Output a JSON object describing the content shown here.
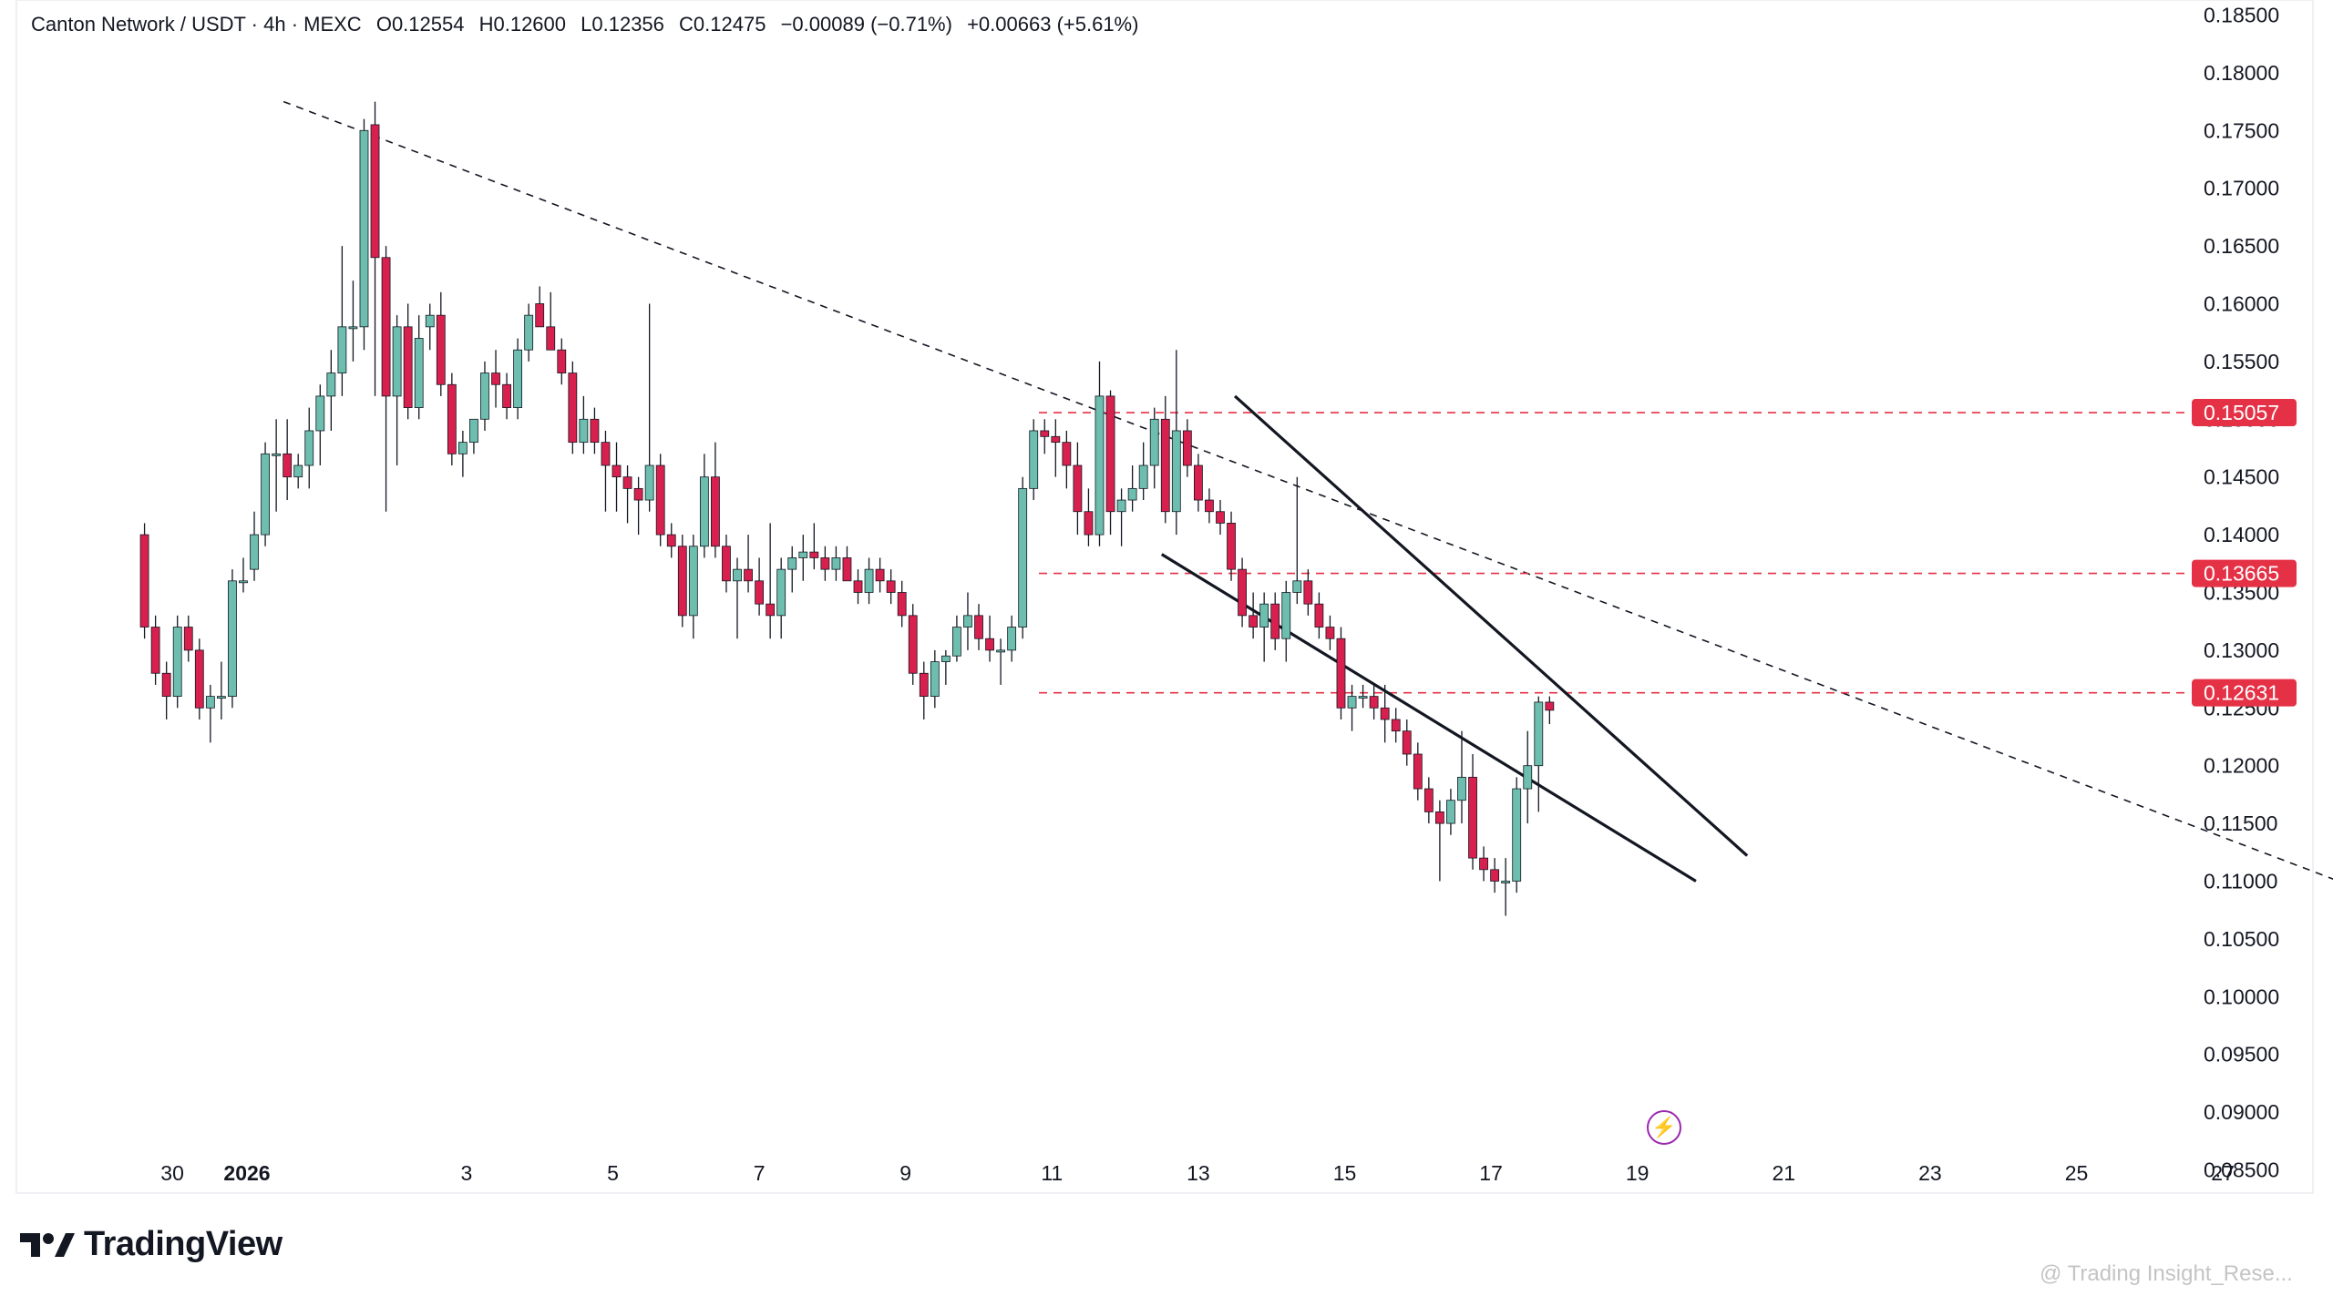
{
  "legend": {
    "symbol": "Canton Network / USDT · 4h · MEXC",
    "open": "O0.12554",
    "high": "H0.12600",
    "low": "L0.12356",
    "close": "C0.12475",
    "change": "−0.00089 (−0.71%)",
    "change2": "+0.00663 (+5.61%)"
  },
  "branding": {
    "logo_text": "TradingView",
    "watermark": "@ Trading Insight_Rese..."
  },
  "icons": {
    "logo": "tradingview-logo-icon",
    "bolt": "lightning-bolt-icon"
  },
  "colors": {
    "up": "#6dbeae",
    "down": "#d8204f",
    "level": "#e53146",
    "trend": "#131722"
  },
  "chart_data": {
    "type": "candlestick",
    "price_axis_ticks": [
      "0.18500",
      "0.18000",
      "0.17500",
      "0.17000",
      "0.16500",
      "0.16000",
      "0.15500",
      "0.15000",
      "0.14500",
      "0.14000",
      "0.13500",
      "0.13000",
      "0.12500",
      "0.12000",
      "0.11500",
      "0.11000",
      "0.10500",
      "0.10000",
      "0.09500",
      "0.09000",
      "0.08500"
    ],
    "ylim": [
      0.0822,
      0.1863
    ],
    "date_axis_ticks": [
      "30",
      "2026",
      "3",
      "5",
      "7",
      "9",
      "11",
      "13",
      "15",
      "17",
      "19",
      "21",
      "23",
      "25",
      "27"
    ],
    "level_labels": [
      "0.15057",
      "0.13665",
      "0.12631"
    ],
    "levels": [
      0.15057,
      0.13665,
      0.12631
    ],
    "trendline": {
      "from": [
        0.5,
        0.1775
      ],
      "to": [
        29.0,
        0.109
      ]
    },
    "wedge": {
      "upper": {
        "from": [
          13.5,
          0.152
        ],
        "to": [
          20.5,
          0.1122
        ]
      },
      "lower": {
        "from": [
          12.5,
          0.1383
        ],
        "to": [
          19.8,
          0.11
        ]
      }
    },
    "candles": [
      [
        -1.4,
        0.14,
        0.141,
        0.131,
        0.132
      ],
      [
        -1.25,
        0.132,
        0.133,
        0.127,
        0.128
      ],
      [
        -1.1,
        0.128,
        0.129,
        0.124,
        0.126
      ],
      [
        -0.95,
        0.126,
        0.133,
        0.125,
        0.132
      ],
      [
        -0.8,
        0.132,
        0.133,
        0.129,
        0.13
      ],
      [
        -0.65,
        0.13,
        0.131,
        0.124,
        0.125
      ],
      [
        -0.5,
        0.125,
        0.127,
        0.122,
        0.126
      ],
      [
        -0.35,
        0.126,
        0.129,
        0.124,
        0.126
      ],
      [
        -0.2,
        0.126,
        0.137,
        0.125,
        0.136
      ],
      [
        -0.05,
        0.136,
        0.138,
        0.135,
        0.136
      ],
      [
        0.1,
        0.137,
        0.142,
        0.136,
        0.14
      ],
      [
        0.25,
        0.14,
        0.148,
        0.139,
        0.147
      ],
      [
        0.4,
        0.147,
        0.15,
        0.142,
        0.147
      ],
      [
        0.55,
        0.147,
        0.15,
        0.143,
        0.145
      ],
      [
        0.7,
        0.145,
        0.147,
        0.144,
        0.146
      ],
      [
        0.85,
        0.146,
        0.151,
        0.144,
        0.149
      ],
      [
        1.0,
        0.149,
        0.153,
        0.146,
        0.152
      ],
      [
        1.15,
        0.152,
        0.156,
        0.149,
        0.154
      ],
      [
        1.3,
        0.154,
        0.165,
        0.152,
        0.158
      ],
      [
        1.45,
        0.158,
        0.162,
        0.155,
        0.158
      ],
      [
        1.6,
        0.158,
        0.176,
        0.156,
        0.175
      ],
      [
        1.75,
        0.1755,
        0.1775,
        0.152,
        0.164
      ],
      [
        1.9,
        0.164,
        0.165,
        0.142,
        0.152
      ],
      [
        2.05,
        0.152,
        0.159,
        0.146,
        0.158
      ],
      [
        2.2,
        0.158,
        0.16,
        0.15,
        0.151
      ],
      [
        2.35,
        0.151,
        0.159,
        0.15,
        0.157
      ],
      [
        2.5,
        0.158,
        0.16,
        0.156,
        0.159
      ],
      [
        2.65,
        0.159,
        0.161,
        0.152,
        0.153
      ],
      [
        2.8,
        0.153,
        0.154,
        0.146,
        0.147
      ],
      [
        2.95,
        0.147,
        0.149,
        0.145,
        0.148
      ],
      [
        3.1,
        0.148,
        0.15,
        0.147,
        0.15
      ],
      [
        3.25,
        0.15,
        0.155,
        0.149,
        0.154
      ],
      [
        3.4,
        0.154,
        0.156,
        0.151,
        0.153
      ],
      [
        3.55,
        0.153,
        0.154,
        0.15,
        0.151
      ],
      [
        3.7,
        0.151,
        0.157,
        0.15,
        0.156
      ],
      [
        3.85,
        0.156,
        0.16,
        0.155,
        0.159
      ],
      [
        4.0,
        0.16,
        0.1615,
        0.158,
        0.158
      ],
      [
        4.15,
        0.158,
        0.161,
        0.156,
        0.156
      ],
      [
        4.3,
        0.156,
        0.157,
        0.153,
        0.154
      ],
      [
        4.45,
        0.154,
        0.155,
        0.147,
        0.148
      ],
      [
        4.6,
        0.148,
        0.152,
        0.147,
        0.15
      ],
      [
        4.75,
        0.15,
        0.151,
        0.147,
        0.148
      ],
      [
        4.9,
        0.148,
        0.149,
        0.142,
        0.146
      ],
      [
        5.05,
        0.146,
        0.148,
        0.142,
        0.145
      ],
      [
        5.2,
        0.145,
        0.146,
        0.141,
        0.144
      ],
      [
        5.35,
        0.144,
        0.145,
        0.14,
        0.143
      ],
      [
        5.5,
        0.143,
        0.16,
        0.142,
        0.146
      ],
      [
        5.65,
        0.146,
        0.147,
        0.139,
        0.14
      ],
      [
        5.8,
        0.14,
        0.141,
        0.138,
        0.139
      ],
      [
        5.95,
        0.139,
        0.14,
        0.132,
        0.133
      ],
      [
        6.1,
        0.133,
        0.14,
        0.131,
        0.139
      ],
      [
        6.25,
        0.139,
        0.147,
        0.138,
        0.145
      ],
      [
        6.4,
        0.145,
        0.148,
        0.138,
        0.139
      ],
      [
        6.55,
        0.139,
        0.14,
        0.135,
        0.136
      ],
      [
        6.7,
        0.136,
        0.138,
        0.131,
        0.137
      ],
      [
        6.85,
        0.137,
        0.14,
        0.135,
        0.136
      ],
      [
        7.0,
        0.136,
        0.138,
        0.133,
        0.134
      ],
      [
        7.15,
        0.134,
        0.141,
        0.131,
        0.133
      ],
      [
        7.3,
        0.133,
        0.138,
        0.131,
        0.137
      ],
      [
        7.45,
        0.137,
        0.139,
        0.135,
        0.138
      ],
      [
        7.6,
        0.138,
        0.14,
        0.136,
        0.1385
      ],
      [
        7.75,
        0.1385,
        0.141,
        0.137,
        0.138
      ],
      [
        7.9,
        0.138,
        0.139,
        0.136,
        0.137
      ],
      [
        8.05,
        0.137,
        0.139,
        0.136,
        0.138
      ],
      [
        8.2,
        0.138,
        0.139,
        0.136,
        0.136
      ],
      [
        8.35,
        0.136,
        0.137,
        0.134,
        0.135
      ],
      [
        8.5,
        0.135,
        0.138,
        0.134,
        0.137
      ],
      [
        8.65,
        0.137,
        0.138,
        0.135,
        0.136
      ],
      [
        8.8,
        0.136,
        0.137,
        0.134,
        0.135
      ],
      [
        8.95,
        0.135,
        0.136,
        0.132,
        0.133
      ],
      [
        9.1,
        0.133,
        0.134,
        0.127,
        0.128
      ],
      [
        9.25,
        0.128,
        0.129,
        0.124,
        0.126
      ],
      [
        9.4,
        0.126,
        0.13,
        0.125,
        0.129
      ],
      [
        9.55,
        0.129,
        0.13,
        0.127,
        0.1295
      ],
      [
        9.7,
        0.1295,
        0.133,
        0.129,
        0.132
      ],
      [
        9.85,
        0.132,
        0.135,
        0.13,
        0.133
      ],
      [
        10.0,
        0.133,
        0.134,
        0.13,
        0.131
      ],
      [
        10.15,
        0.131,
        0.133,
        0.129,
        0.13
      ],
      [
        10.3,
        0.13,
        0.131,
        0.127,
        0.13
      ],
      [
        10.45,
        0.13,
        0.133,
        0.129,
        0.132
      ],
      [
        10.6,
        0.132,
        0.145,
        0.131,
        0.144
      ],
      [
        10.75,
        0.144,
        0.15,
        0.143,
        0.149
      ],
      [
        10.9,
        0.149,
        0.15,
        0.147,
        0.1485
      ],
      [
        11.05,
        0.1485,
        0.15,
        0.145,
        0.148
      ],
      [
        11.2,
        0.148,
        0.149,
        0.144,
        0.146
      ],
      [
        11.35,
        0.146,
        0.148,
        0.14,
        0.142
      ],
      [
        11.5,
        0.142,
        0.144,
        0.139,
        0.14
      ],
      [
        11.65,
        0.14,
        0.155,
        0.139,
        0.152
      ],
      [
        11.8,
        0.152,
        0.1525,
        0.14,
        0.142
      ],
      [
        11.95,
        0.142,
        0.144,
        0.139,
        0.143
      ],
      [
        12.1,
        0.143,
        0.146,
        0.142,
        0.144
      ],
      [
        12.25,
        0.144,
        0.148,
        0.143,
        0.146
      ],
      [
        12.4,
        0.146,
        0.151,
        0.144,
        0.15
      ],
      [
        12.55,
        0.15,
        0.152,
        0.141,
        0.142
      ],
      [
        12.7,
        0.142,
        0.156,
        0.14,
        0.149
      ],
      [
        12.85,
        0.149,
        0.15,
        0.145,
        0.146
      ],
      [
        13.0,
        0.146,
        0.147,
        0.142,
        0.143
      ],
      [
        13.15,
        0.143,
        0.144,
        0.141,
        0.142
      ],
      [
        13.3,
        0.142,
        0.143,
        0.14,
        0.141
      ],
      [
        13.45,
        0.141,
        0.142,
        0.136,
        0.137
      ],
      [
        13.6,
        0.137,
        0.138,
        0.132,
        0.133
      ],
      [
        13.75,
        0.133,
        0.135,
        0.131,
        0.132
      ],
      [
        13.9,
        0.132,
        0.135,
        0.129,
        0.134
      ],
      [
        14.05,
        0.134,
        0.135,
        0.13,
        0.131
      ],
      [
        14.2,
        0.131,
        0.136,
        0.129,
        0.135
      ],
      [
        14.35,
        0.135,
        0.145,
        0.134,
        0.136
      ],
      [
        14.5,
        0.136,
        0.137,
        0.133,
        0.134
      ],
      [
        14.65,
        0.134,
        0.135,
        0.131,
        0.132
      ],
      [
        14.8,
        0.132,
        0.133,
        0.13,
        0.131
      ],
      [
        14.95,
        0.131,
        0.132,
        0.124,
        0.125
      ],
      [
        15.1,
        0.125,
        0.127,
        0.123,
        0.126
      ],
      [
        15.25,
        0.126,
        0.127,
        0.125,
        0.126
      ],
      [
        15.4,
        0.126,
        0.127,
        0.124,
        0.125
      ],
      [
        15.55,
        0.125,
        0.127,
        0.122,
        0.124
      ],
      [
        15.7,
        0.124,
        0.125,
        0.122,
        0.123
      ],
      [
        15.85,
        0.123,
        0.124,
        0.12,
        0.121
      ],
      [
        16.0,
        0.121,
        0.122,
        0.117,
        0.118
      ],
      [
        16.15,
        0.118,
        0.119,
        0.115,
        0.116
      ],
      [
        16.3,
        0.116,
        0.117,
        0.11,
        0.115
      ],
      [
        16.45,
        0.115,
        0.118,
        0.114,
        0.117
      ],
      [
        16.6,
        0.117,
        0.123,
        0.115,
        0.119
      ],
      [
        16.75,
        0.119,
        0.121,
        0.111,
        0.112
      ],
      [
        16.9,
        0.112,
        0.113,
        0.11,
        0.111
      ],
      [
        17.05,
        0.111,
        0.112,
        0.109,
        0.11
      ],
      [
        17.2,
        0.11,
        0.112,
        0.107,
        0.11
      ],
      [
        17.35,
        0.11,
        0.119,
        0.109,
        0.118
      ],
      [
        17.5,
        0.118,
        0.123,
        0.115,
        0.12
      ],
      [
        17.65,
        0.12,
        0.126,
        0.116,
        0.1255
      ],
      [
        17.8,
        0.1255,
        0.126,
        0.1236,
        0.1248
      ]
    ]
  }
}
